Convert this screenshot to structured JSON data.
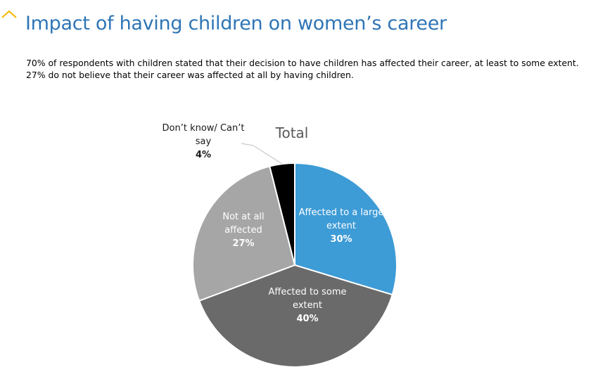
{
  "header": {
    "title": "Impact of having children on women’s career",
    "intro_lines": [
      "70% of respondents with children stated that their decision to have children has affected their career, at least to some extent.",
      "27% do not believe that their career was affected at all by having children."
    ]
  },
  "colors": {
    "title": "#2e75b6",
    "accent_mark": "#f5b800"
  },
  "chart_data": {
    "type": "pie",
    "title": "Total",
    "unit": "%",
    "slices": [
      {
        "label_lines": [
          "Affected to a large",
          "extent"
        ],
        "value": 30,
        "value_label": "30%",
        "color": "#3d9bd6",
        "label_color": "#ffffff"
      },
      {
        "label_lines": [
          "Affected to some",
          "extent"
        ],
        "value": 40,
        "value_label": "40%",
        "color": "#6a6a6a",
        "label_color": "#ffffff"
      },
      {
        "label_lines": [
          "Not at all",
          "affected"
        ],
        "value": 27,
        "value_label": "27%",
        "color": "#a6a6a6",
        "label_color": "#ffffff"
      },
      {
        "label_lines": [
          "Don’t know/ Can’t",
          "say"
        ],
        "value": 4,
        "value_label": "4%",
        "color": "#000000",
        "label_color": "#1a1a1a",
        "external_label": true
      }
    ]
  }
}
